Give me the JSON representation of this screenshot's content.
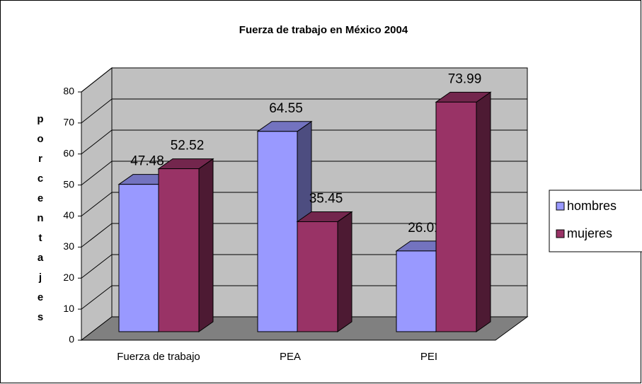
{
  "chart_data": {
    "type": "bar",
    "title": "Fuerza de trabajo en México 2004",
    "ylabel": "porcentajes",
    "categories": [
      "Fuerza de trabajo",
      "PEA",
      "PEI"
    ],
    "series": [
      {
        "name": "hombres",
        "color": "#9999ff",
        "values": [
          47.48,
          64.55,
          26.01
        ]
      },
      {
        "name": "mujeres",
        "color": "#993366",
        "values": [
          52.52,
          35.45,
          73.99
        ]
      }
    ],
    "ylim": [
      0,
      80
    ],
    "yticks": [
      0,
      10,
      20,
      30,
      40,
      50,
      60,
      70,
      80
    ],
    "grid": true,
    "legend": "right"
  }
}
